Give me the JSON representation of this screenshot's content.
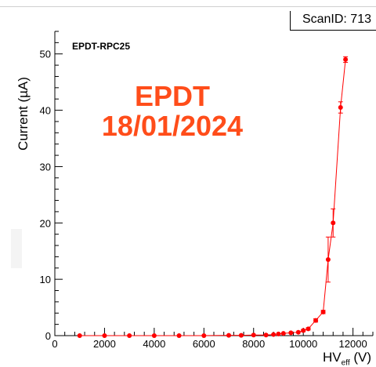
{
  "header": {
    "scan_id": "ScanID: 713"
  },
  "annotations": {
    "run_label": "EPDT-RPC25",
    "stamp_line1": "EPDT",
    "stamp_line2": "18/01/2024"
  },
  "colors": {
    "series": "#ff0000",
    "stamp": "#ff4d1a",
    "axis": "#000000"
  },
  "chart_data": {
    "type": "scatter",
    "title": "",
    "xlabel_main": "HV",
    "xlabel_sub": "eff",
    "xlabel_unit": "(V)",
    "ylabel": "Current (µA)",
    "xlim": [
      0,
      12800
    ],
    "ylim": [
      0,
      54
    ],
    "x_ticks": [
      0,
      2000,
      4000,
      6000,
      8000,
      10000,
      12000
    ],
    "x_tick_labels": [
      "0",
      "2000",
      "4000",
      "6000",
      "8000",
      "10000",
      "12000"
    ],
    "y_ticks": [
      0,
      10,
      20,
      30,
      40,
      50
    ],
    "y_tick_labels": [
      "0",
      "10",
      "20",
      "30",
      "40",
      "50"
    ],
    "grid": false,
    "series": [
      {
        "connect": true,
        "points": [
          {
            "x": 1000,
            "y": 0.0,
            "err": 0
          },
          {
            "x": 2000,
            "y": 0.0,
            "err": 0
          },
          {
            "x": 3000,
            "y": 0.0,
            "err": 0
          },
          {
            "x": 4000,
            "y": 0.0,
            "err": 0
          },
          {
            "x": 5000,
            "y": 0.0,
            "err": 0
          },
          {
            "x": 6000,
            "y": 0.0,
            "err": 0
          },
          {
            "x": 7000,
            "y": 0.05,
            "err": 0
          },
          {
            "x": 7500,
            "y": 0.05,
            "err": 0
          },
          {
            "x": 8000,
            "y": 0.1,
            "err": 0
          },
          {
            "x": 8500,
            "y": 0.1,
            "err": 0
          },
          {
            "x": 8800,
            "y": 0.2,
            "err": 0
          },
          {
            "x": 9000,
            "y": 0.3,
            "err": 0
          },
          {
            "x": 9200,
            "y": 0.4,
            "err": 0
          },
          {
            "x": 9500,
            "y": 0.5,
            "err": 0
          },
          {
            "x": 9800,
            "y": 0.6,
            "err": 0
          },
          {
            "x": 10000,
            "y": 0.9,
            "err": 0.2
          },
          {
            "x": 10200,
            "y": 1.2,
            "err": 0.2
          },
          {
            "x": 10500,
            "y": 2.7,
            "err": 0.3
          },
          {
            "x": 10800,
            "y": 4.2,
            "err": 0.3
          },
          {
            "x": 11000,
            "y": 13.5,
            "err": 4.0
          },
          {
            "x": 11200,
            "y": 20.0,
            "err": 2.5
          },
          {
            "x": 11500,
            "y": 40.5,
            "err": 1.0
          },
          {
            "x": 11700,
            "y": 49.0,
            "err": 0.5
          }
        ]
      }
    ]
  }
}
